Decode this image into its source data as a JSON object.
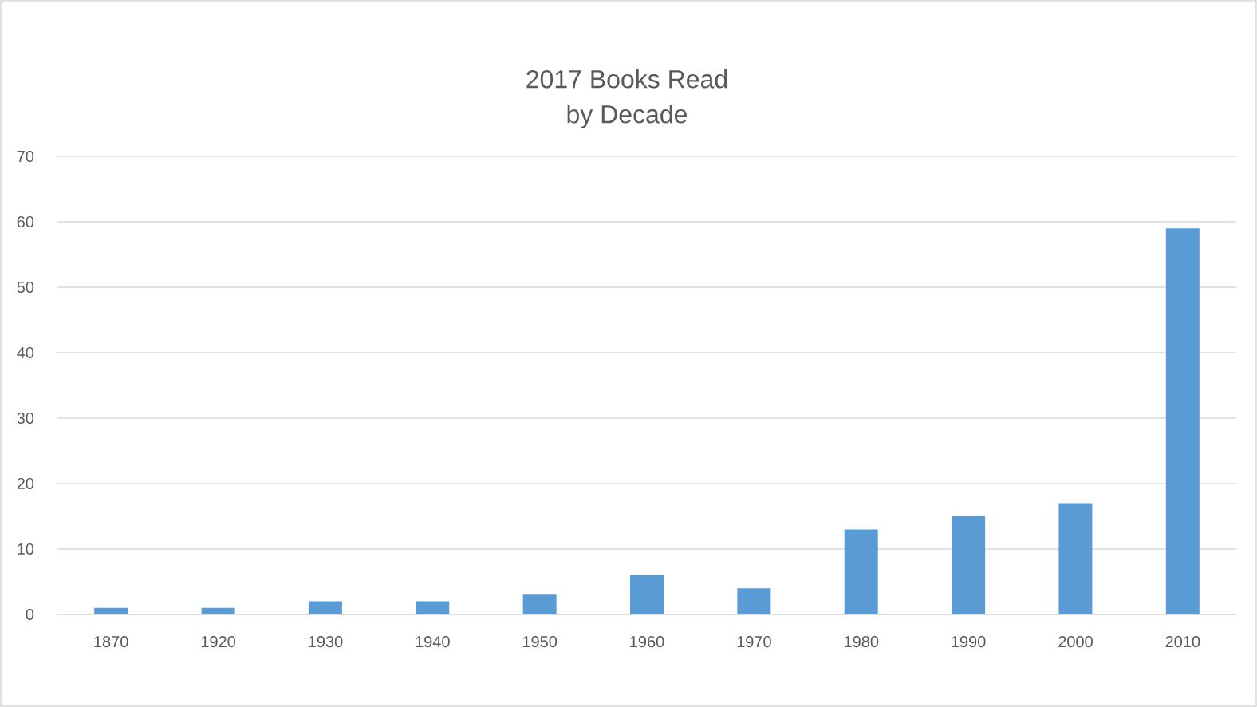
{
  "chart_data": {
    "type": "bar",
    "title": "2017 Books Read by Decade",
    "categories": [
      "1870",
      "1920",
      "1930",
      "1940",
      "1950",
      "1960",
      "1970",
      "1980",
      "1990",
      "2000",
      "2010"
    ],
    "values": [
      1,
      1,
      2,
      2,
      3,
      6,
      4,
      13,
      15,
      17,
      59
    ],
    "color": "#5b9bd5",
    "ylim": [
      0,
      70
    ],
    "yticks": [
      0,
      10,
      20,
      30,
      40,
      50,
      60,
      70
    ],
    "grid": "y"
  }
}
